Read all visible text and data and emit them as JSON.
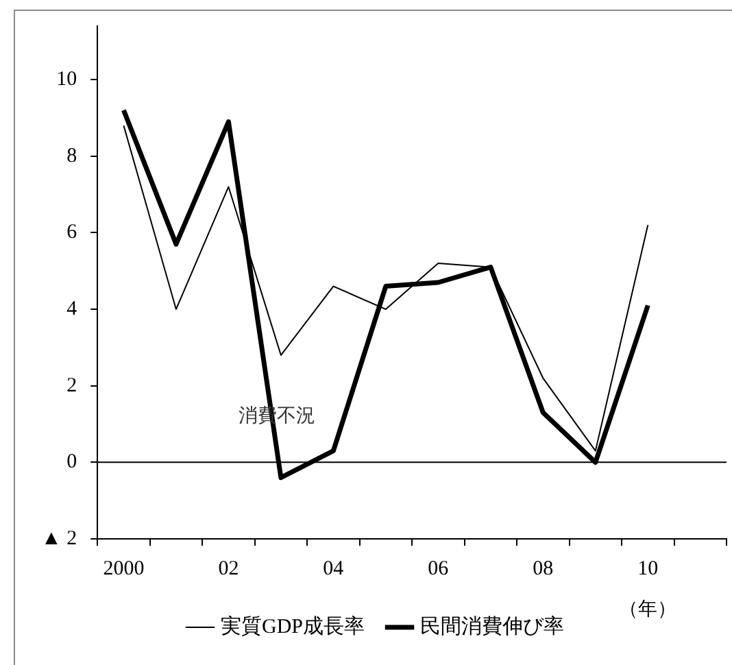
{
  "chart_data": {
    "type": "line",
    "xlabel": "（年）",
    "categories": [
      "2000",
      null,
      "02",
      null,
      "04",
      null,
      "06",
      null,
      "08",
      null,
      "10",
      null
    ],
    "series": [
      {
        "name": "実質GDP成長率",
        "color": "#000000",
        "values": [
          8.8,
          4.0,
          7.2,
          2.8,
          4.6,
          4.0,
          5.2,
          5.1,
          2.2,
          0.3,
          6.2,
          null
        ]
      },
      {
        "name": "民間消費伸び率",
        "color": "#000000",
        "values": [
          9.2,
          5.7,
          8.9,
          -0.4,
          0.3,
          4.6,
          4.7,
          5.1,
          1.3,
          0.0,
          4.1,
          null
        ]
      }
    ],
    "ylim": [
      -2,
      11.4
    ],
    "yticks": [
      {
        "value": -2,
        "label": "▲ 2"
      },
      0,
      2,
      4,
      6,
      8,
      10
    ],
    "ref_lines": [
      {
        "axis": "y",
        "value": 0
      }
    ],
    "annotations": [
      {
        "text": "消費不況",
        "y": 1.2
      }
    ],
    "legend": "bottom",
    "marker": "none",
    "line_style": "solid"
  }
}
